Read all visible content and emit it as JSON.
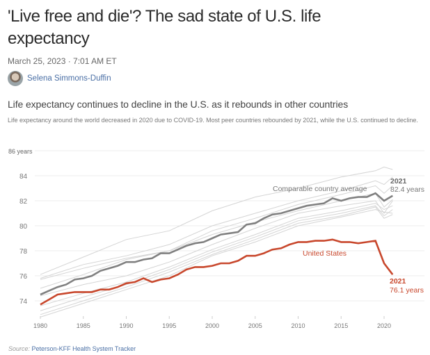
{
  "article": {
    "title": "'Live free and die'? The sad state of U.S. life expectancy",
    "date": "March 25, 2023 · 7:01 AM ET",
    "author": "Selena Simmons-Duffin"
  },
  "chart_data": {
    "type": "line",
    "title": "Life expectancy continues to decline in the U.S. as it rebounds in other countries",
    "subtitle": "Life expectancy around the world decreased in 2020 due to COVID-19. Most peer countries rebounded by 2021, while the U.S. continued to decline.",
    "ylim": [
      72.5,
      86
    ],
    "yticks": [
      "74",
      "76",
      "78",
      "80",
      "82",
      "84",
      "86 years"
    ],
    "ytick_values": [
      74,
      76,
      78,
      80,
      82,
      84,
      86
    ],
    "xticks": [
      "1980",
      "1985",
      "1990",
      "1995",
      "2000",
      "2005",
      "2010",
      "2015",
      "2020"
    ],
    "xlim": [
      1980,
      2021
    ],
    "grid": true,
    "colors": {
      "us": "#c8472c",
      "average": "#808080",
      "countries": "#d4d4d4"
    },
    "x": [
      1980,
      1981,
      1982,
      1983,
      1984,
      1985,
      1986,
      1987,
      1988,
      1989,
      1990,
      1991,
      1992,
      1993,
      1994,
      1995,
      1996,
      1997,
      1998,
      1999,
      2000,
      2001,
      2002,
      2003,
      2004,
      2005,
      2006,
      2007,
      2008,
      2009,
      2010,
      2011,
      2012,
      2013,
      2014,
      2015,
      2016,
      2017,
      2018,
      2019,
      2020,
      2021
    ],
    "series": [
      {
        "name": "United States",
        "values": [
          73.7,
          74.1,
          74.5,
          74.6,
          74.7,
          74.7,
          74.7,
          74.9,
          74.9,
          75.1,
          75.4,
          75.5,
          75.8,
          75.5,
          75.7,
          75.8,
          76.1,
          76.5,
          76.7,
          76.7,
          76.8,
          77.0,
          77.0,
          77.2,
          77.6,
          77.6,
          77.8,
          78.1,
          78.2,
          78.5,
          78.7,
          78.7,
          78.8,
          78.8,
          78.9,
          78.7,
          78.7,
          78.6,
          78.7,
          78.8,
          77.0,
          76.1
        ]
      },
      {
        "name": "Comparable country average",
        "values": [
          74.5,
          74.8,
          75.1,
          75.3,
          75.7,
          75.8,
          76.0,
          76.4,
          76.6,
          76.8,
          77.1,
          77.1,
          77.3,
          77.4,
          77.8,
          77.8,
          78.1,
          78.4,
          78.6,
          78.7,
          79.0,
          79.3,
          79.4,
          79.5,
          80.1,
          80.2,
          80.6,
          80.9,
          81.0,
          81.2,
          81.4,
          81.6,
          81.7,
          81.8,
          82.2,
          82.0,
          82.2,
          82.3,
          82.3,
          82.6,
          82.0,
          82.4
        ]
      }
    ],
    "country_x": [
      1980,
      1985,
      1990,
      1995,
      2000,
      2005,
      2010,
      2015,
      2019,
      2020,
      2021
    ],
    "country_series": [
      [
        76.1,
        77.5,
        78.9,
        79.6,
        81.2,
        82.3,
        83.0,
        83.9,
        84.4,
        84.7,
        84.5
      ],
      [
        75.8,
        76.9,
        77.6,
        78.5,
        80.0,
        81.0,
        82.0,
        82.8,
        83.6,
        83.3,
        83.9
      ],
      [
        75.7,
        76.6,
        77.4,
        78.0,
        79.6,
        80.6,
        81.7,
        82.5,
        83.2,
        82.6,
        83.2
      ],
      [
        75.0,
        76.1,
        77.3,
        78.0,
        79.3,
        80.3,
        81.2,
        82.0,
        82.6,
        81.5,
        82.1
      ],
      [
        74.4,
        75.3,
        76.0,
        77.1,
        78.5,
        79.8,
        81.0,
        81.6,
        82.0,
        81.0,
        82.0
      ],
      [
        73.6,
        74.6,
        75.5,
        76.7,
        78.1,
        79.3,
        80.6,
        81.2,
        81.8,
        81.3,
        81.6
      ],
      [
        73.2,
        74.3,
        75.3,
        76.5,
        77.9,
        79.1,
        80.4,
        81.0,
        81.6,
        80.8,
        81.3
      ],
      [
        72.9,
        74.0,
        75.1,
        76.3,
        77.7,
        78.9,
        80.2,
        80.8,
        81.5,
        80.6,
        80.9
      ],
      [
        72.7,
        73.8,
        74.9,
        76.0,
        77.6,
        78.7,
        80.0,
        80.7,
        81.3,
        81.1,
        81.0
      ]
    ],
    "annotations": {
      "average_label": "Comparable country average",
      "us_label": "United States",
      "avg_end_year": "2021",
      "avg_end_value": "82.4 years",
      "us_end_year": "2021",
      "us_end_value": "76.1 years"
    },
    "source_prefix": "Source:",
    "source": "Peterson-KFF Health System Tracker"
  }
}
